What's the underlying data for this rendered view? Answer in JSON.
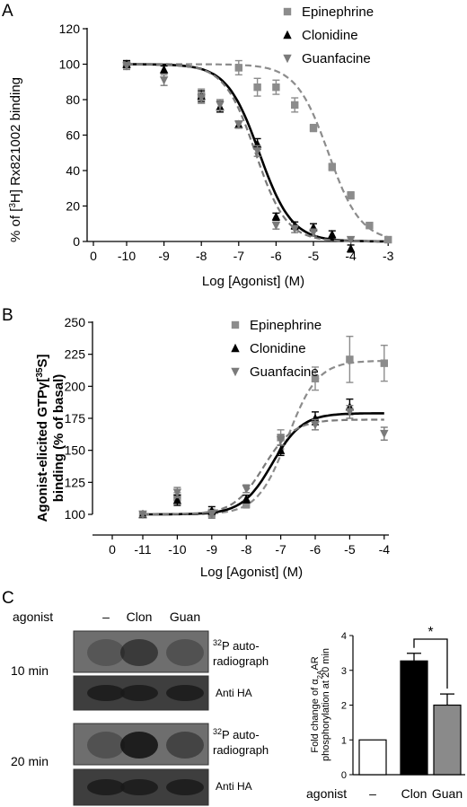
{
  "panels": {
    "a": {
      "letter": "A"
    },
    "b": {
      "letter": "B"
    },
    "c": {
      "letter": "C"
    }
  },
  "colors": {
    "epinephrine": "#8c8c8c",
    "clonidine": "#000000",
    "guanfacine": "#7a7a7a"
  },
  "chart_data": [
    {
      "type": "line",
      "panel": "A",
      "xlabel": "Log [Agonist] (M)",
      "ylabel": "% of [3H] Rx821002 binding",
      "ylabel_parts": {
        "pre": "% of [",
        "sup": "3",
        "post": "H] Rx821002 binding"
      },
      "xlim": [
        0,
        -3
      ],
      "ylim": [
        0,
        120
      ],
      "xticks": [
        0,
        -10,
        -9,
        -8,
        -7,
        -6,
        -5,
        -4,
        -3
      ],
      "yticks": [
        0,
        20,
        40,
        60,
        80,
        100,
        120
      ],
      "legend_position": "top-right",
      "series": [
        {
          "name": "Epinephrine",
          "marker": "square",
          "dash": true,
          "x": [
            -10,
            -8,
            -7,
            -6.5,
            -6,
            -5.5,
            -5,
            -4.5,
            -4,
            -3.5,
            -3
          ],
          "y": [
            100,
            82,
            98,
            87,
            87,
            77,
            64,
            42,
            26,
            9,
            1
          ],
          "err": [
            2,
            4,
            4,
            5,
            4,
            4,
            2,
            2,
            2,
            1,
            1
          ],
          "fit": {
            "top": 100,
            "bottom": 0,
            "logec50": -4.6,
            "hill": 1
          }
        },
        {
          "name": "Clonidine",
          "marker": "triangle",
          "dash": false,
          "x": [
            -10,
            -9,
            -8,
            -7.5,
            -7,
            -6.5,
            -6,
            -5.5,
            -5,
            -4.5,
            -4
          ],
          "y": [
            100,
            97,
            82,
            76,
            66,
            55,
            14,
            9,
            8,
            4,
            -4
          ],
          "err": [
            2,
            2,
            3,
            3,
            2,
            3,
            2,
            2,
            2,
            2,
            2
          ],
          "fit": {
            "top": 100,
            "bottom": 0,
            "logec50": -6.45,
            "hill": 1
          }
        },
        {
          "name": "Guanfacine",
          "marker": "triangle-down",
          "dash": true,
          "x": [
            -10,
            -9,
            -8,
            -7.5,
            -7,
            -6.5,
            -6,
            -5.5,
            -5,
            -4
          ],
          "y": [
            99,
            91,
            81,
            77,
            66,
            51,
            9,
            7,
            5,
            1
          ],
          "err": [
            2,
            3,
            3,
            3,
            2,
            3,
            2,
            2,
            2,
            1
          ],
          "fit": {
            "top": 100,
            "bottom": 0,
            "logec50": -6.55,
            "hill": 1.05
          }
        }
      ]
    },
    {
      "type": "line",
      "panel": "B",
      "xlabel": "Log [Agonist] (M)",
      "ylabel": "Agonist-elicited GTPγ[35S] binding (% of basal)",
      "ylabel_parts": {
        "line1_pre": "Agonist-elicited GTPγ[",
        "line1_sup": "35",
        "line1_post": "S]",
        "line2": "binding (% of basal)"
      },
      "xlim": [
        0,
        -4
      ],
      "ylim": [
        100,
        250
      ],
      "xticks": [
        0,
        -11,
        -10,
        -9,
        -8,
        -7,
        -6,
        -5,
        -4
      ],
      "yticks": [
        100,
        125,
        150,
        175,
        200,
        225,
        250
      ],
      "legend_position": "top-left",
      "series": [
        {
          "name": "Epinephrine",
          "marker": "square",
          "dash": true,
          "x": [
            -11,
            -10,
            -9,
            -8,
            -7,
            -6,
            -5,
            -4
          ],
          "y": [
            100,
            113,
            101,
            108,
            160,
            206,
            221,
            218
          ],
          "err": [
            2,
            4,
            3,
            3,
            6,
            9,
            18,
            14
          ],
          "fit": {
            "bottom": 100,
            "top": 220,
            "logec50": -6.8,
            "hill": 1
          }
        },
        {
          "name": "Clonidine",
          "marker": "triangle",
          "dash": false,
          "x": [
            -11,
            -10,
            -9,
            -8,
            -7,
            -6,
            -5
          ],
          "y": [
            100,
            111,
            103,
            112,
            150,
            175,
            184
          ],
          "err": [
            2,
            4,
            3,
            3,
            4,
            5,
            6
          ],
          "fit": {
            "bottom": 100,
            "top": 179,
            "logec50": -7.25,
            "hill": 1
          }
        },
        {
          "name": "Guanfacine",
          "marker": "triangle-down",
          "dash": true,
          "x": [
            -11,
            -10,
            -9,
            -8,
            -7,
            -6,
            -5,
            -4
          ],
          "y": [
            100,
            117,
            100,
            120,
            158,
            170,
            180,
            163
          ],
          "err": [
            2,
            4,
            3,
            3,
            4,
            4,
            5,
            5
          ],
          "fit": {
            "bottom": 100,
            "top": 174,
            "logec50": -7.5,
            "hill": 1
          }
        }
      ]
    },
    {
      "type": "bar",
      "panel": "C",
      "ylabel": "Fold change of α2AAR phosphorylation at 20 min",
      "ylabel_parts": {
        "line1_pre": "Fold change of α",
        "line1_sub": "2A",
        "line1_post": "AR",
        "line2": "phosphorylation at 20 min"
      },
      "ylim": [
        0,
        4
      ],
      "yticks": [
        0,
        1,
        2,
        3,
        4
      ],
      "xlabel_prefix": "agonist",
      "categories": [
        "–",
        "Clon",
        "Guan"
      ],
      "values": [
        1.0,
        3.27,
        2.0
      ],
      "errors": [
        0,
        0.22,
        0.32
      ],
      "bar_colors": [
        "#ffffff",
        "#000000",
        "#8a8a8a"
      ],
      "significance": {
        "between": [
          "Clon",
          "Guan"
        ],
        "label": "*"
      }
    }
  ],
  "blot": {
    "agonist_label": "agonist",
    "lanes": [
      "–",
      "Clon",
      "Guan"
    ],
    "time_labels": [
      "10 min",
      "20 min"
    ],
    "autorad_sup": "32",
    "autorad_line1": "P auto-",
    "autorad_line2": "radiograph",
    "anti_ha": "Anti HA",
    "autorad_intensity": [
      [
        0.25,
        0.55,
        0.3
      ],
      [
        0.3,
        0.85,
        0.45
      ]
    ]
  }
}
